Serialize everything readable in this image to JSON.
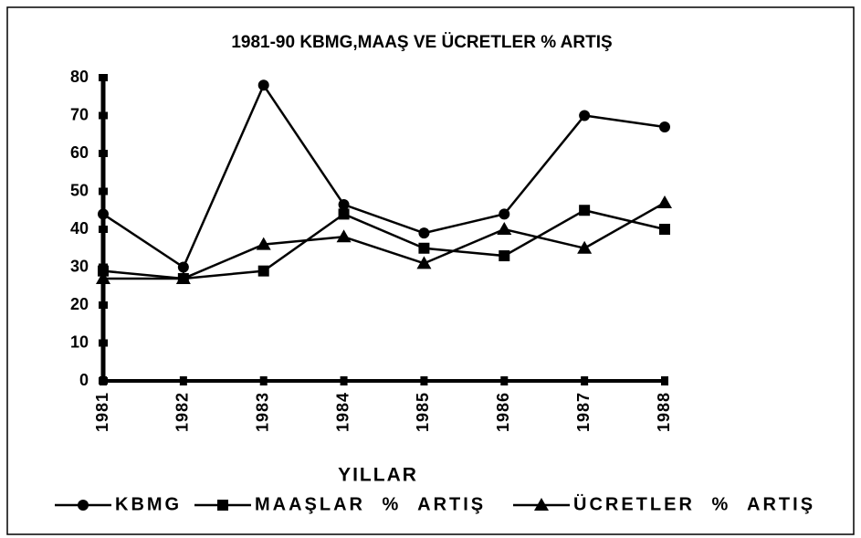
{
  "chart_data": {
    "type": "line",
    "title": "1981-90 KBMG,MAAŞ VE ÜCRETLER % ARTIŞ",
    "x_label": "YILLAR",
    "categories": [
      "1981",
      "1982",
      "1983",
      "1984",
      "1985",
      "1986",
      "1987",
      "1988"
    ],
    "series": [
      {
        "name": "KBMG",
        "color": "#000000",
        "marker": "circle",
        "values": [
          44,
          30,
          78,
          46.5,
          39,
          44,
          70,
          67
        ]
      },
      {
        "name": "MAAŞLAR % ARTIŞ",
        "color": "#000000",
        "marker": "square",
        "values": [
          29,
          27,
          29,
          44,
          35,
          33,
          45,
          40
        ]
      },
      {
        "name": "ÜCRETLER % ARTIŞ",
        "color": "#000000",
        "marker": "triangle",
        "values": [
          27,
          27,
          36,
          38,
          31,
          40,
          35,
          47
        ]
      }
    ],
    "ylim": [
      0,
      80
    ],
    "yticks": [
      0,
      10,
      20,
      30,
      40,
      50,
      60,
      70,
      80
    ],
    "grid": false,
    "legend": "bottom"
  }
}
